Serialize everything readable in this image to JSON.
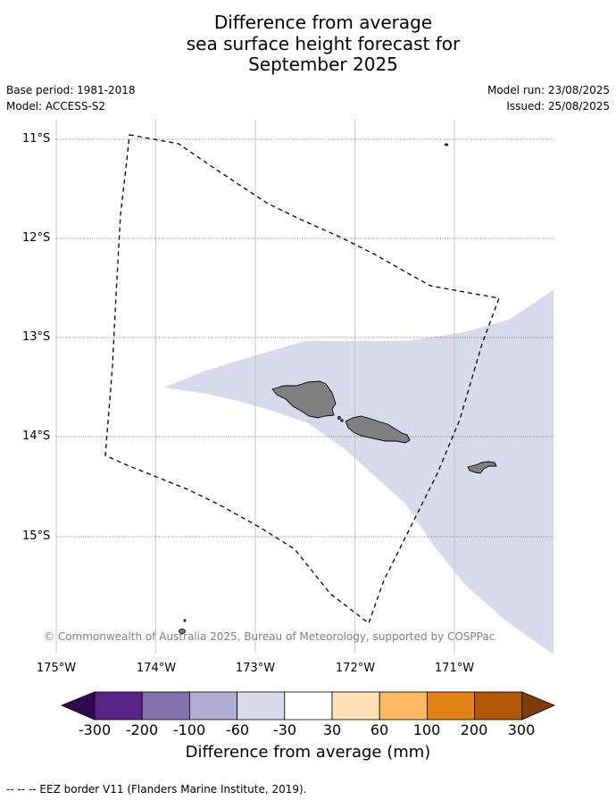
{
  "title_lines": [
    "Difference from average",
    "sea surface height forecast for",
    "September 2025"
  ],
  "meta": {
    "base_period": "Base period: 1981-2018",
    "model": "Model: ACCESS-S2",
    "model_run": "Model run: 23/08/2025",
    "issued": "Issued: 25/08/2025"
  },
  "axes": {
    "lat_labels": [
      "11°S",
      "12°S",
      "13°S",
      "14°S",
      "15°S"
    ],
    "lon_labels": [
      "175°W",
      "174°W",
      "173°W",
      "172°W",
      "171°W"
    ]
  },
  "copyright": "© Commonwealth of Australia 2025, Bureau of Meteorology, supported by COSPPac",
  "colorbar": {
    "ticks": [
      "-300",
      "-200",
      "-100",
      "-60",
      "-30",
      "30",
      "60",
      "100",
      "200",
      "300"
    ],
    "colors": [
      "#2d0a4f",
      "#5a2389",
      "#8271ad",
      "#b2acd3",
      "#d9d9ec",
      "#ffffff",
      "#fee0b6",
      "#fbb860",
      "#e08214",
      "#b35806",
      "#7f3b08"
    ],
    "label": "Difference from average (mm)"
  },
  "legend": "--  --  -- EEZ border V11 (Flanders Marine Institute, 2019).",
  "map_colors": {
    "anomaly_fill": "#d9d9ec",
    "land": "#808080"
  }
}
